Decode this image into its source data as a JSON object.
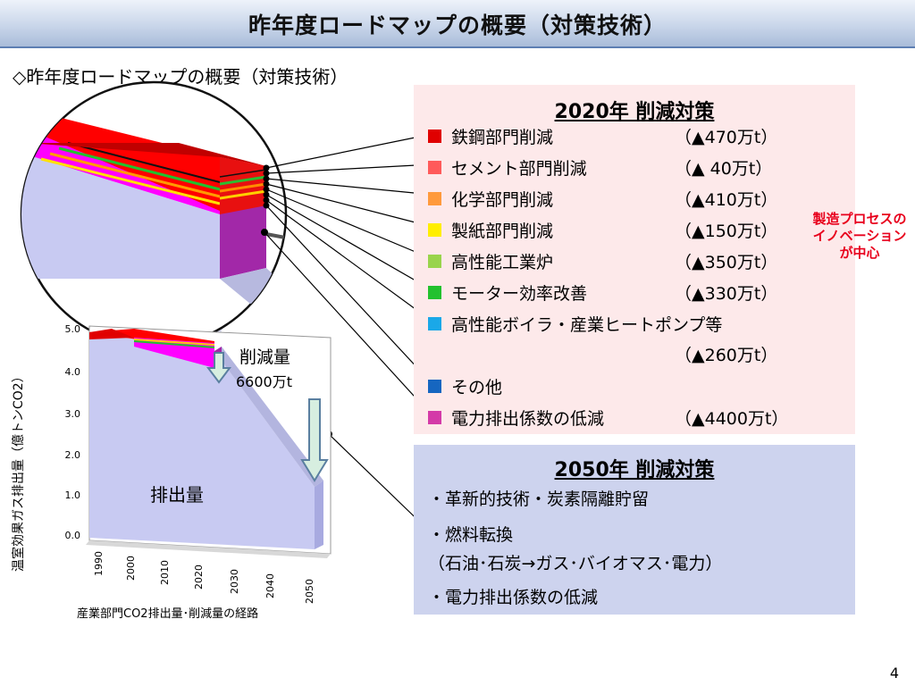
{
  "header": {
    "title": "昨年度ロードマップの概要（対策技術）"
  },
  "subtitle": "◇昨年度ロードマップの概要（対策技術）",
  "box2020": {
    "title": "2020年 削減対策",
    "items": [
      {
        "label": "鉄鋼部門削減",
        "value": "（▲470万t）",
        "color": "#e00000"
      },
      {
        "label": "セメント部門削減",
        "value": "（▲  40万t）",
        "color": "#ff5a5a"
      },
      {
        "label": "化学部門削減",
        "value": "（▲410万t）",
        "color": "#ff9a3c"
      },
      {
        "label": "製紙部門削減",
        "value": "（▲150万t）",
        "color": "#ffee00"
      },
      {
        "label": "高性能工業炉",
        "value": "（▲350万t）",
        "color": "#99d44c"
      },
      {
        "label": "モーター効率改善",
        "value": "（▲330万t）",
        "color": "#22c12e"
      },
      {
        "label": "高性能ボイラ・産業ヒートポンプ等",
        "value": "（▲260万t）",
        "color": "#1aa8e8"
      },
      {
        "label": "その他",
        "value": "",
        "color": "#1666c0"
      },
      {
        "label": "電力排出係数の低減",
        "value": "（▲4400万t）",
        "color": "#d43aa8"
      }
    ],
    "bracket_note": "製造プロセスのイノベーションが中心"
  },
  "box2050": {
    "title": "2050年 削減対策",
    "lines": [
      "・革新的技術・炭素隔離貯留",
      "・燃料転換",
      "（石油･石炭→ガス･バイオマス･電力）",
      "・電力排出係数の低減"
    ]
  },
  "chart_data": {
    "type": "area",
    "title": "",
    "xlabel": "",
    "ylabel": "温室効果ガス排出量（億トンCO2）",
    "caption": "産業部門CO2排出量･削減量の経路",
    "categories": [
      "1990",
      "2000",
      "2010",
      "2020",
      "2030",
      "2040",
      "2050"
    ],
    "y_ticks": [
      "5.0",
      "4.0",
      "3.0",
      "2.0",
      "1.0",
      "0.0"
    ],
    "ylim": [
      0,
      5
    ],
    "annotations": {
      "reduction_label": "削減量",
      "reduction_value": "6600万t",
      "emission_label": "排出量"
    }
  },
  "page_number": "4"
}
